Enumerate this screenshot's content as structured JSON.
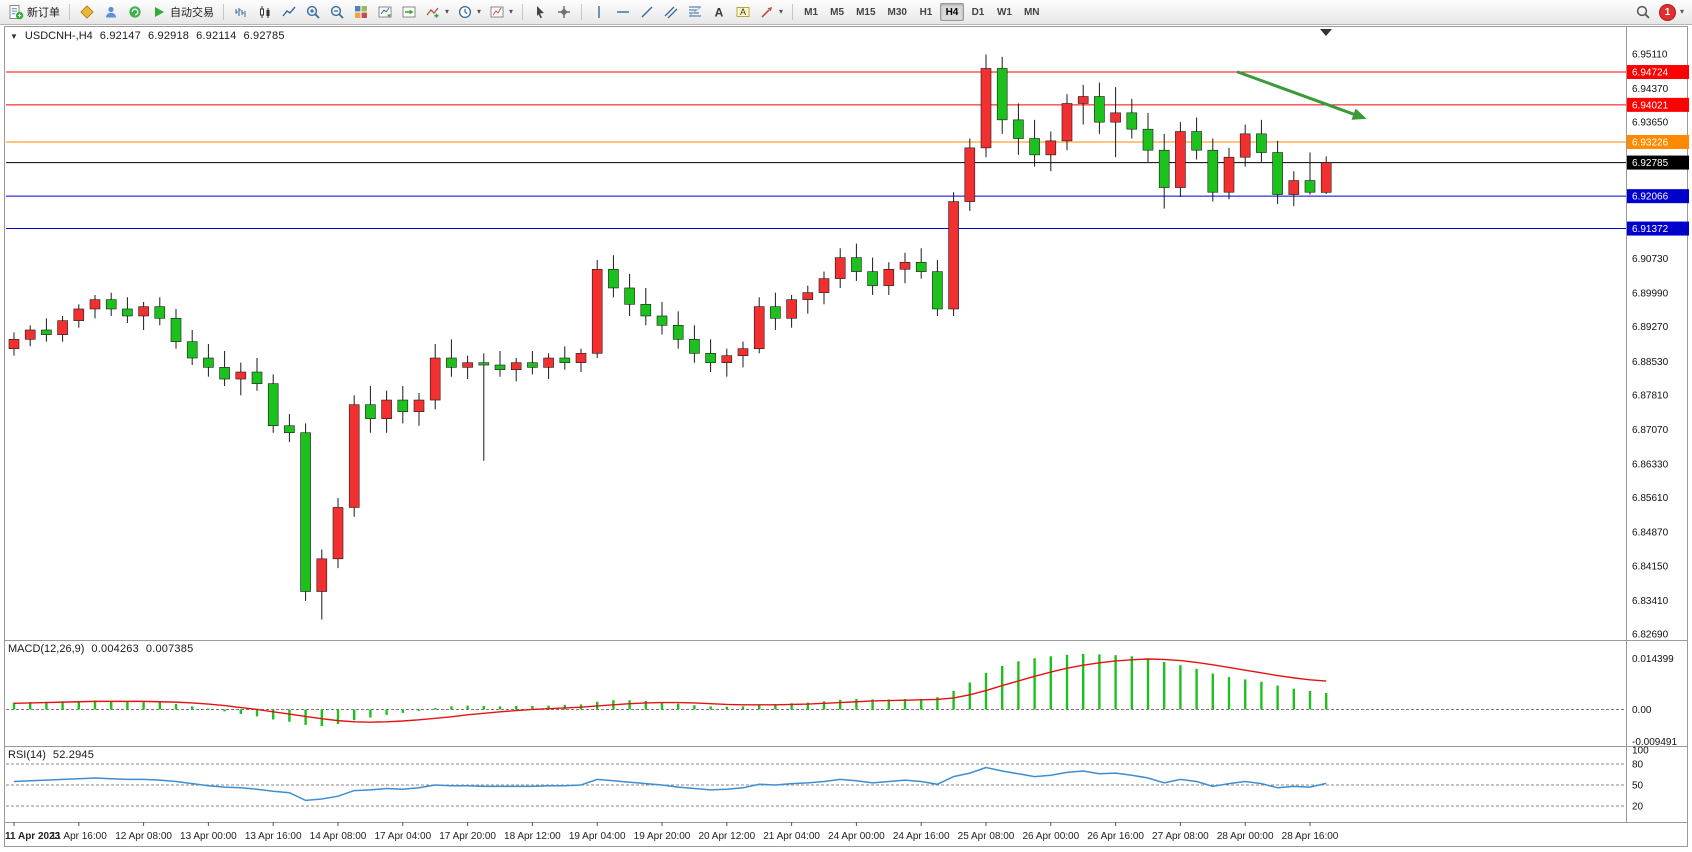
{
  "toolbar": {
    "new_order_label": "新订单",
    "autotrade_label": "自动交易",
    "timeframes": [
      "M1",
      "M5",
      "M15",
      "M30",
      "H1",
      "H4",
      "D1",
      "W1",
      "MN"
    ],
    "active_timeframe": "H4",
    "notification_count": "1",
    "icon_glyphs": {
      "caret": "▾",
      "text_tool": "A",
      "text_label_tool": "A"
    },
    "icons": [
      "new-order-icon",
      "gold-seal-icon",
      "profiles-icon",
      "community-icon",
      "autotrade-icon",
      "bar-chart-icon",
      "candlestick-chart-icon",
      "line-chart-icon",
      "zoom-in-icon",
      "zoom-out-icon",
      "tile-windows-icon",
      "auto-scroll-icon",
      "chart-shift-icon",
      "indicators-icon",
      "periods-icon",
      "templates-icon",
      "cursor-icon",
      "crosshair-icon",
      "vertical-line-icon",
      "horizontal-line-icon",
      "trendline-icon",
      "channel-icon",
      "fibonacci-icon",
      "text-icon",
      "text-label-icon",
      "shapes-icon",
      "search-icon",
      "notification-badge"
    ]
  },
  "chart": {
    "header": {
      "marker": "▼",
      "symbol": "USDCNH-,H4",
      "open": "6.92147",
      "high": "6.92918",
      "low": "6.92114",
      "close": "6.92785"
    }
  },
  "chart_data": {
    "type": "candlestick",
    "symbol": "USDCNH",
    "timeframe": "H4",
    "ylim": [
      6.8269,
      6.9511
    ],
    "colors": {
      "up": "#f23030",
      "down": "#1dc11d",
      "wick": "#1a1a1a",
      "macd_bar": "#1dc11d",
      "macd_signal": "#e51212",
      "rsi": "#3e8ed0"
    },
    "candles": [
      [
        6.888,
        6.8915,
        6.8865,
        6.89
      ],
      [
        6.89,
        6.893,
        6.8885,
        6.892
      ],
      [
        6.892,
        6.8945,
        6.8895,
        6.891
      ],
      [
        6.891,
        6.895,
        6.8895,
        6.894
      ],
      [
        6.894,
        6.8975,
        6.8925,
        6.8965
      ],
      [
        6.8965,
        6.8995,
        6.8945,
        6.8985
      ],
      [
        6.8985,
        6.9,
        6.895,
        6.8965
      ],
      [
        6.8965,
        6.899,
        6.8935,
        6.895
      ],
      [
        6.895,
        6.898,
        6.892,
        6.897
      ],
      [
        6.897,
        6.899,
        6.893,
        6.8945
      ],
      [
        6.8945,
        6.8965,
        6.888,
        6.8895
      ],
      [
        6.8895,
        6.892,
        6.8845,
        6.886
      ],
      [
        6.886,
        6.889,
        6.882,
        6.884
      ],
      [
        6.884,
        6.8875,
        6.88,
        6.8815
      ],
      [
        6.8815,
        6.885,
        6.878,
        6.883
      ],
      [
        6.883,
        6.886,
        6.879,
        6.8805
      ],
      [
        6.8805,
        6.8825,
        6.87,
        6.8715
      ],
      [
        6.8715,
        6.874,
        6.868,
        6.87
      ],
      [
        6.87,
        6.872,
        6.834,
        6.836
      ],
      [
        6.836,
        6.845,
        6.83,
        6.843
      ],
      [
        6.843,
        6.856,
        6.841,
        6.854
      ],
      [
        6.854,
        6.878,
        6.852,
        6.876
      ],
      [
        6.876,
        6.88,
        6.87,
        6.873
      ],
      [
        6.873,
        6.879,
        6.87,
        6.877
      ],
      [
        6.877,
        6.88,
        6.872,
        6.8745
      ],
      [
        6.8745,
        6.8785,
        6.8715,
        6.877
      ],
      [
        6.877,
        6.889,
        6.875,
        6.886
      ],
      [
        6.886,
        6.89,
        6.882,
        6.884
      ],
      [
        6.884,
        6.8865,
        6.8815,
        6.885
      ],
      [
        6.885,
        6.887,
        6.864,
        6.8845
      ],
      [
        6.8845,
        6.8875,
        6.882,
        6.8835
      ],
      [
        6.8835,
        6.886,
        6.881,
        6.885
      ],
      [
        6.885,
        6.8875,
        6.8825,
        6.884
      ],
      [
        6.884,
        6.887,
        6.8815,
        6.886
      ],
      [
        6.886,
        6.8885,
        6.8835,
        6.885
      ],
      [
        6.885,
        6.888,
        6.883,
        6.887
      ],
      [
        6.887,
        6.907,
        6.886,
        6.905
      ],
      [
        6.905,
        6.908,
        6.899,
        6.901
      ],
      [
        6.901,
        6.904,
        6.895,
        6.8975
      ],
      [
        6.8975,
        6.901,
        6.893,
        6.895
      ],
      [
        6.895,
        6.898,
        6.891,
        6.893
      ],
      [
        6.893,
        6.896,
        6.888,
        6.89
      ],
      [
        6.89,
        6.893,
        6.885,
        6.887
      ],
      [
        6.887,
        6.89,
        6.883,
        6.885
      ],
      [
        6.885,
        6.888,
        6.882,
        6.8865
      ],
      [
        6.8865,
        6.8895,
        6.884,
        6.888
      ],
      [
        6.888,
        6.899,
        6.887,
        6.897
      ],
      [
        6.897,
        6.9,
        6.892,
        6.8945
      ],
      [
        6.8945,
        6.8995,
        6.8925,
        6.8985
      ],
      [
        6.8985,
        6.9015,
        6.8955,
        6.9
      ],
      [
        6.9,
        6.9045,
        6.8975,
        6.903
      ],
      [
        6.903,
        6.9095,
        6.901,
        6.9075
      ],
      [
        6.9075,
        6.9105,
        6.9025,
        6.9045
      ],
      [
        6.9045,
        6.9075,
        6.8995,
        6.9015
      ],
      [
        6.9015,
        6.9065,
        6.8995,
        6.905
      ],
      [
        6.905,
        6.9085,
        6.902,
        6.9065
      ],
      [
        6.9065,
        6.9095,
        6.903,
        6.9045
      ],
      [
        6.9045,
        6.907,
        6.895,
        6.8965
      ],
      [
        6.8965,
        6.9215,
        6.895,
        6.9195
      ],
      [
        6.9195,
        6.933,
        6.9175,
        6.931
      ],
      [
        6.931,
        6.951,
        6.929,
        6.948
      ],
      [
        6.948,
        6.9505,
        6.934,
        6.937
      ],
      [
        6.937,
        6.9405,
        6.9295,
        6.933
      ],
      [
        6.933,
        6.937,
        6.927,
        6.9295
      ],
      [
        6.9295,
        6.9345,
        6.926,
        6.9325
      ],
      [
        6.9325,
        6.9425,
        6.9305,
        6.9405
      ],
      [
        6.9405,
        6.9445,
        6.936,
        6.942
      ],
      [
        6.942,
        6.945,
        6.934,
        6.9365
      ],
      [
        6.9365,
        6.944,
        6.929,
        6.9385
      ],
      [
        6.9385,
        6.9415,
        6.933,
        6.935
      ],
      [
        6.935,
        6.9385,
        6.928,
        6.9305
      ],
      [
        6.9305,
        6.934,
        6.918,
        6.9225
      ],
      [
        6.9225,
        6.9365,
        6.9205,
        6.9345
      ],
      [
        6.9345,
        6.9375,
        6.9285,
        6.9305
      ],
      [
        6.9305,
        6.933,
        6.9195,
        6.9215
      ],
      [
        6.9215,
        6.931,
        6.92,
        6.929
      ],
      [
        6.929,
        6.936,
        6.927,
        6.934
      ],
      [
        6.934,
        6.937,
        6.928,
        6.93
      ],
      [
        6.93,
        6.9325,
        6.919,
        6.921
      ],
      [
        6.921,
        6.926,
        6.9185,
        6.924
      ],
      [
        6.924,
        6.93,
        6.921,
        6.9215
      ],
      [
        6.92147,
        6.92918,
        6.92114,
        6.92785
      ]
    ],
    "time_labels": [
      {
        "i": 0,
        "t": "11 Apr 2023"
      },
      {
        "i": 4,
        "t": "11 Apr 16:00"
      },
      {
        "i": 8,
        "t": "12 Apr 08:00"
      },
      {
        "i": 12,
        "t": "13 Apr 00:00"
      },
      {
        "i": 16,
        "t": "13 Apr 16:00"
      },
      {
        "i": 20,
        "t": "14 Apr 08:00"
      },
      {
        "i": 24,
        "t": "17 Apr 04:00"
      },
      {
        "i": 28,
        "t": "17 Apr 20:00"
      },
      {
        "i": 32,
        "t": "18 Apr 12:00"
      },
      {
        "i": 36,
        "t": "19 Apr 04:00"
      },
      {
        "i": 40,
        "t": "19 Apr 20:00"
      },
      {
        "i": 44,
        "t": "20 Apr 12:00"
      },
      {
        "i": 48,
        "t": "21 Apr 04:00"
      },
      {
        "i": 52,
        "t": "24 Apr 00:00"
      },
      {
        "i": 56,
        "t": "24 Apr 16:00"
      },
      {
        "i": 60,
        "t": "25 Apr 08:00"
      },
      {
        "i": 64,
        "t": "26 Apr 00:00"
      },
      {
        "i": 68,
        "t": "26 Apr 16:00"
      },
      {
        "i": 72,
        "t": "27 Apr 08:00"
      },
      {
        "i": 76,
        "t": "28 Apr 00:00"
      },
      {
        "i": 80,
        "t": "28 Apr 16:00"
      }
    ],
    "y_axis_labels": [
      {
        "p": 6.9511,
        "t": "6.95110"
      },
      {
        "p": 6.9437,
        "t": "6.94370"
      },
      {
        "p": 6.9365,
        "t": "6.93650"
      },
      {
        "p": 6.9073,
        "t": "6.90730"
      },
      {
        "p": 6.8999,
        "t": "6.89990"
      },
      {
        "p": 6.8927,
        "t": "6.89270"
      },
      {
        "p": 6.8853,
        "t": "6.88530"
      },
      {
        "p": 6.8781,
        "t": "6.87810"
      },
      {
        "p": 6.8707,
        "t": "6.87070"
      },
      {
        "p": 6.8633,
        "t": "6.86330"
      },
      {
        "p": 6.8561,
        "t": "6.85610"
      },
      {
        "p": 6.8487,
        "t": "6.84870"
      },
      {
        "p": 6.8415,
        "t": "6.84150"
      },
      {
        "p": 6.8341,
        "t": "6.83410"
      },
      {
        "p": 6.8269,
        "t": "6.82690"
      }
    ],
    "hlines": [
      {
        "price": 6.94724,
        "label": "6.94724",
        "color": "#ff0000"
      },
      {
        "price": 6.94021,
        "label": "6.94021",
        "color": "#ff0000"
      },
      {
        "price": 6.93226,
        "label": "6.93226",
        "color": "#ff8a00"
      },
      {
        "price": 6.92785,
        "label": "6.92785",
        "color": "#000000"
      },
      {
        "price": 6.92066,
        "label": "6.92066",
        "color": "#0000cd"
      },
      {
        "price": 6.91372,
        "label": "6.91372",
        "color": "#0000cd"
      }
    ],
    "annotations": [
      {
        "type": "arrow",
        "color": "#3a9a3a",
        "width": 3,
        "from": {
          "index": 75.5,
          "price": 6.9473
        },
        "to": {
          "index": 83.5,
          "price": 6.9372
        }
      }
    ],
    "macd": {
      "label": "MACD(12,26,9)",
      "value_main": "0.004263",
      "value_signal": "0.007385",
      "ylim": [
        -0.009491,
        0.014399
      ],
      "scale_labels": {
        "top": "0.014399",
        "zero": "0.00",
        "bottom": "-0.009491"
      },
      "histogram": [
        0.0018,
        0.0019,
        0.002,
        0.0021,
        0.0022,
        0.0023,
        0.0022,
        0.0021,
        0.0019,
        0.0018,
        0.0014,
        0.0008,
        0.0002,
        -0.0005,
        -0.0012,
        -0.0018,
        -0.0026,
        -0.0032,
        -0.004,
        -0.0043,
        -0.0038,
        -0.0028,
        -0.0021,
        -0.0014,
        -0.0009,
        -0.0004,
        0.0004,
        0.0008,
        0.001,
        0.0009,
        0.0008,
        0.0009,
        0.0009,
        0.001,
        0.0012,
        0.0013,
        0.002,
        0.0024,
        0.0024,
        0.0022,
        0.0019,
        0.0015,
        0.0011,
        0.0008,
        0.0007,
        0.0008,
        0.0012,
        0.0014,
        0.0016,
        0.0018,
        0.0021,
        0.0025,
        0.0027,
        0.0026,
        0.0026,
        0.0027,
        0.0027,
        0.0032,
        0.0048,
        0.007,
        0.0095,
        0.0113,
        0.0125,
        0.0133,
        0.0138,
        0.0142,
        0.0144,
        0.0143,
        0.0141,
        0.0138,
        0.0133,
        0.0123,
        0.0115,
        0.0105,
        0.0093,
        0.0084,
        0.0078,
        0.0072,
        0.0062,
        0.0054,
        0.0048,
        0.004263
      ],
      "signal": [
        0.0016,
        0.0017,
        0.0018,
        0.0019,
        0.002,
        0.0021,
        0.0021,
        0.0021,
        0.0021,
        0.002,
        0.0019,
        0.0017,
        0.0014,
        0.001,
        0.0005,
        0.0,
        -0.0006,
        -0.0012,
        -0.0018,
        -0.0024,
        -0.0029,
        -0.0032,
        -0.0033,
        -0.0032,
        -0.003,
        -0.0027,
        -0.0023,
        -0.0019,
        -0.0014,
        -0.001,
        -0.0006,
        -0.0003,
        0.0,
        0.0002,
        0.0004,
        0.0006,
        0.0009,
        0.0012,
        0.0015,
        0.0017,
        0.0018,
        0.0018,
        0.0017,
        0.0015,
        0.0013,
        0.0012,
        0.0012,
        0.0012,
        0.0013,
        0.0014,
        0.0016,
        0.0018,
        0.002,
        0.0022,
        0.0023,
        0.0024,
        0.0025,
        0.0026,
        0.003,
        0.0038,
        0.0049,
        0.0062,
        0.0074,
        0.0086,
        0.0097,
        0.0107,
        0.0115,
        0.0121,
        0.0126,
        0.0129,
        0.0131,
        0.013,
        0.0127,
        0.0122,
        0.0116,
        0.0109,
        0.0102,
        0.0095,
        0.0088,
        0.0082,
        0.0077,
        0.007385
      ]
    },
    "rsi": {
      "label": "RSI(14)",
      "value": "52.2945",
      "ylim": [
        0,
        100
      ],
      "levels": [
        80,
        50,
        20
      ],
      "scale_labels": [
        {
          "v": 100,
          "t": "100"
        },
        {
          "v": 80,
          "t": "80"
        },
        {
          "v": 50,
          "t": "50"
        },
        {
          "v": 20,
          "t": "20"
        }
      ],
      "values": [
        55,
        56,
        57,
        58,
        59,
        60,
        59,
        58,
        58,
        57,
        55,
        52,
        49,
        47,
        46,
        44,
        41,
        39,
        28,
        30,
        34,
        42,
        43,
        45,
        44,
        46,
        50,
        49,
        49,
        48,
        48,
        48,
        48,
        49,
        49,
        50,
        58,
        56,
        54,
        52,
        50,
        47,
        45,
        43,
        44,
        46,
        51,
        50,
        52,
        53,
        55,
        58,
        56,
        53,
        55,
        57,
        55,
        51,
        62,
        67,
        75,
        70,
        66,
        62,
        64,
        68,
        70,
        66,
        67,
        64,
        60,
        53,
        58,
        55,
        48,
        52,
        55,
        52,
        46,
        48,
        47,
        52.29
      ]
    }
  }
}
